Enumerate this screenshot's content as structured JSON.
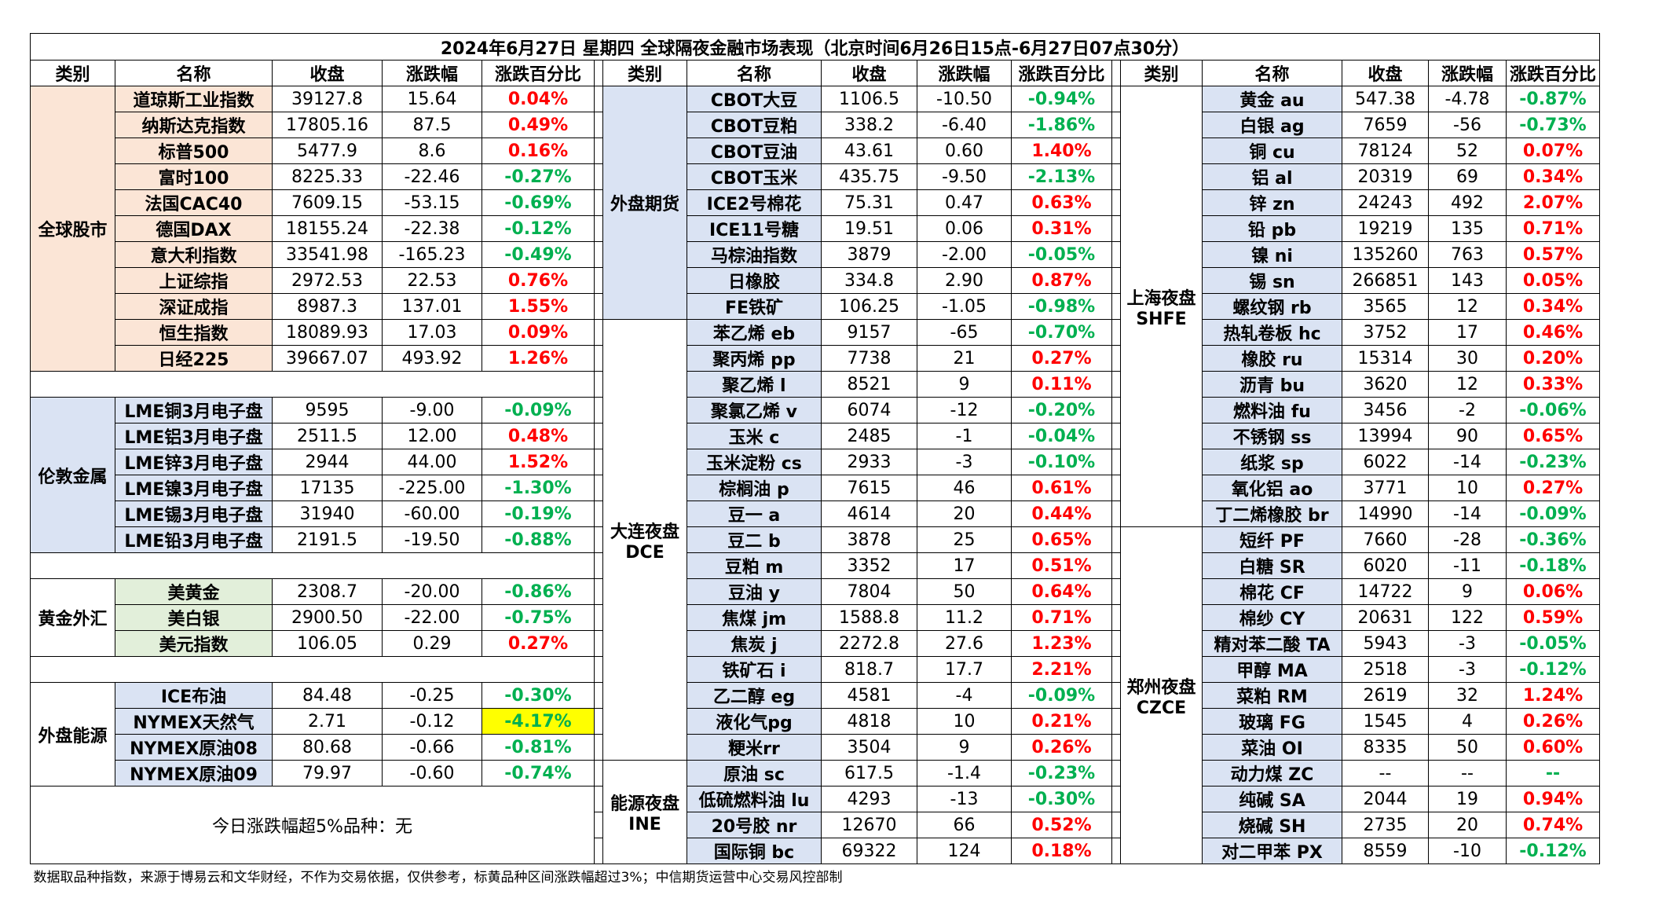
{
  "title": "2024年6月27日 星期四 全球隔夜金融市场表现（北京时间6月26日15点-6月27日07点30分）",
  "headers": [
    "类别",
    "名称",
    "收盘",
    "涨跌幅",
    "涨跌百分比"
  ],
  "colors": {
    "up": "#ff0000",
    "down": "#00b050",
    "highlight": "#ffff00",
    "stock_bg": "#fbe5d6",
    "metal_bg": "#dae3f3",
    "energy_bg": "#e2efda"
  },
  "left": {
    "stocks": {
      "label": "全球股市",
      "rows": [
        {
          "name": "道琼斯工业指数",
          "close": "39127.8",
          "chg": "15.64",
          "pct": "0.04%"
        },
        {
          "name": "纳斯达克指数",
          "close": "17805.16",
          "chg": "87.5",
          "pct": "0.49%"
        },
        {
          "name": "标普500",
          "close": "5477.9",
          "chg": "8.6",
          "pct": "0.16%"
        },
        {
          "name": "富时100",
          "close": "8225.33",
          "chg": "-22.46",
          "pct": "-0.27%"
        },
        {
          "name": "法国CAC40",
          "close": "7609.15",
          "chg": "-53.15",
          "pct": "-0.69%"
        },
        {
          "name": "德国DAX",
          "close": "18155.24",
          "chg": "-22.38",
          "pct": "-0.12%"
        },
        {
          "name": "意大利指数",
          "close": "33541.98",
          "chg": "-165.23",
          "pct": "-0.49%"
        },
        {
          "name": "上证综指",
          "close": "2972.53",
          "chg": "22.53",
          "pct": "0.76%"
        },
        {
          "name": "深证成指",
          "close": "8987.3",
          "chg": "137.01",
          "pct": "1.55%"
        },
        {
          "name": "恒生指数",
          "close": "18089.93",
          "chg": "17.03",
          "pct": "0.09%"
        },
        {
          "name": "日经225",
          "close": "39667.07",
          "chg": "493.92",
          "pct": "1.26%"
        }
      ]
    },
    "london": {
      "label": "伦敦金属",
      "rows": [
        {
          "name": "LME铜3月电子盘",
          "close": "9595",
          "chg": "-9.00",
          "pct": "-0.09%"
        },
        {
          "name": "LME铝3月电子盘",
          "close": "2511.5",
          "chg": "12.00",
          "pct": "0.48%"
        },
        {
          "name": "LME锌3月电子盘",
          "close": "2944",
          "chg": "44.00",
          "pct": "1.52%"
        },
        {
          "name": "LME镍3月电子盘",
          "close": "17135",
          "chg": "-225.00",
          "pct": "-1.30%"
        },
        {
          "name": "LME锡3月电子盘",
          "close": "31940",
          "chg": "-60.00",
          "pct": "-0.19%"
        },
        {
          "name": "LME铅3月电子盘",
          "close": "2191.5",
          "chg": "-19.50",
          "pct": "-0.88%"
        }
      ]
    },
    "gold": {
      "label": "黄金外汇",
      "rows": [
        {
          "name": "美黄金",
          "close": "2308.7",
          "chg": "-20.00",
          "pct": "-0.86%"
        },
        {
          "name": "美白银",
          "close": "2900.50",
          "chg": "-22.00",
          "pct": "-0.75%"
        },
        {
          "name": "美元指数",
          "close": "106.05",
          "chg": "0.29",
          "pct": "0.27%"
        }
      ]
    },
    "energy": {
      "label": "外盘能源",
      "rows": [
        {
          "name": "ICE布油",
          "close": "84.48",
          "chg": "-0.25",
          "pct": "-0.30%"
        },
        {
          "name": "NYMEX天然气",
          "close": "2.71",
          "chg": "-0.12",
          "pct": "-4.17%"
        },
        {
          "name": "NYMEX原油08",
          "close": "80.68",
          "chg": "-0.66",
          "pct": "-0.81%"
        },
        {
          "name": "NYMEX原油09",
          "close": "79.97",
          "chg": "-0.60",
          "pct": "-0.74%"
        }
      ]
    },
    "summary": "今日涨跌幅超5%品种：无"
  },
  "middle": {
    "foreign": {
      "label": "外盘期货",
      "rows": [
        {
          "name": "CBOT大豆",
          "close": "1106.5",
          "chg": "-10.50",
          "pct": "-0.94%"
        },
        {
          "name": "CBOT豆粕",
          "close": "338.2",
          "chg": "-6.40",
          "pct": "-1.86%"
        },
        {
          "name": "CBOT豆油",
          "close": "43.61",
          "chg": "0.60",
          "pct": "1.40%"
        },
        {
          "name": "CBOT玉米",
          "close": "435.75",
          "chg": "-9.50",
          "pct": "-2.13%"
        },
        {
          "name": "ICE2号棉花",
          "close": "75.31",
          "chg": "0.47",
          "pct": "0.63%"
        },
        {
          "name": "ICE11号糖",
          "close": "19.51",
          "chg": "0.06",
          "pct": "0.31%"
        },
        {
          "name": "马棕油指数",
          "close": "3879",
          "chg": "-2.00",
          "pct": "-0.05%"
        },
        {
          "name": "日橡胶",
          "close": "334.8",
          "chg": "2.90",
          "pct": "0.87%"
        },
        {
          "name": "FE铁矿",
          "close": "106.25",
          "chg": "-1.05",
          "pct": "-0.98%"
        }
      ]
    },
    "dce": {
      "label": "大连夜盘",
      "label2": "DCE",
      "rows": [
        {
          "name": "苯乙烯 eb",
          "close": "9157",
          "chg": "-65",
          "pct": "-0.70%"
        },
        {
          "name": "聚丙烯 pp",
          "close": "7738",
          "chg": "21",
          "pct": "0.27%"
        },
        {
          "name": "聚乙烯 l",
          "close": "8521",
          "chg": "9",
          "pct": "0.11%"
        },
        {
          "name": "聚氯乙烯 v",
          "close": "6074",
          "chg": "-12",
          "pct": "-0.20%"
        },
        {
          "name": "玉米 c",
          "close": "2485",
          "chg": "-1",
          "pct": "-0.04%"
        },
        {
          "name": "玉米淀粉 cs",
          "close": "2933",
          "chg": "-3",
          "pct": "-0.10%"
        },
        {
          "name": "棕榈油 p",
          "close": "7615",
          "chg": "46",
          "pct": "0.61%"
        },
        {
          "name": "豆一 a",
          "close": "4614",
          "chg": "20",
          "pct": "0.44%"
        },
        {
          "name": "豆二 b",
          "close": "3878",
          "chg": "25",
          "pct": "0.65%"
        },
        {
          "name": "豆粕 m",
          "close": "3352",
          "chg": "17",
          "pct": "0.51%"
        },
        {
          "name": "豆油 y",
          "close": "7804",
          "chg": "50",
          "pct": "0.64%"
        },
        {
          "name": "焦煤 jm",
          "close": "1588.8",
          "chg": "11.2",
          "pct": "0.71%"
        },
        {
          "name": "焦炭 j",
          "close": "2272.8",
          "chg": "27.6",
          "pct": "1.23%"
        },
        {
          "name": "铁矿石 i",
          "close": "818.7",
          "chg": "17.7",
          "pct": "2.21%"
        },
        {
          "name": "乙二醇 eg",
          "close": "4581",
          "chg": "-4",
          "pct": "-0.09%"
        },
        {
          "name": "液化气pg",
          "close": "4818",
          "chg": "10",
          "pct": "0.21%"
        },
        {
          "name": "粳米rr",
          "close": "3504",
          "chg": "9",
          "pct": "0.26%"
        }
      ]
    },
    "ine": {
      "label": "能源夜盘",
      "label2": "INE",
      "rows": [
        {
          "name": "原油 sc",
          "close": "617.5",
          "chg": "-1.4",
          "pct": "-0.23%"
        },
        {
          "name": "低硫燃料油 lu",
          "close": "4293",
          "chg": "-13",
          "pct": "-0.30%"
        },
        {
          "name": "20号胶 nr",
          "close": "12670",
          "chg": "66",
          "pct": "0.52%"
        },
        {
          "name": "国际铜 bc",
          "close": "69322",
          "chg": "124",
          "pct": "0.18%"
        }
      ]
    }
  },
  "right": {
    "shfe": {
      "label": "上海夜盘",
      "label2": "SHFE",
      "rows": [
        {
          "name": "黄金 au",
          "close": "547.38",
          "chg": "-4.78",
          "pct": "-0.87%"
        },
        {
          "name": "白银 ag",
          "close": "7659",
          "chg": "-56",
          "pct": "-0.73%"
        },
        {
          "name": "铜 cu",
          "close": "78124",
          "chg": "52",
          "pct": "0.07%"
        },
        {
          "name": "铝 al",
          "close": "20319",
          "chg": "69",
          "pct": "0.34%"
        },
        {
          "name": "锌 zn",
          "close": "24243",
          "chg": "492",
          "pct": "2.07%"
        },
        {
          "name": "铅 pb",
          "close": "19219",
          "chg": "135",
          "pct": "0.71%"
        },
        {
          "name": "镍 ni",
          "close": "135260",
          "chg": "763",
          "pct": "0.57%"
        },
        {
          "name": "锡 sn",
          "close": "266851",
          "chg": "143",
          "pct": "0.05%"
        },
        {
          "name": "螺纹钢 rb",
          "close": "3565",
          "chg": "12",
          "pct": "0.34%"
        },
        {
          "name": "热轧卷板 hc",
          "close": "3752",
          "chg": "17",
          "pct": "0.46%"
        },
        {
          "name": "橡胶 ru",
          "close": "15314",
          "chg": "30",
          "pct": "0.20%"
        },
        {
          "name": "沥青 bu",
          "close": "3620",
          "chg": "12",
          "pct": "0.33%"
        },
        {
          "name": "燃料油 fu",
          "close": "3456",
          "chg": "-2",
          "pct": "-0.06%"
        },
        {
          "name": "不锈钢 ss",
          "close": "13994",
          "chg": "90",
          "pct": "0.65%"
        },
        {
          "name": "纸浆 sp",
          "close": "6022",
          "chg": "-14",
          "pct": "-0.23%"
        },
        {
          "name": "氧化铝 ao",
          "close": "3771",
          "chg": "10",
          "pct": "0.27%"
        },
        {
          "name": "丁二烯橡胶 br",
          "close": "14990",
          "chg": "-14",
          "pct": "-0.09%"
        }
      ]
    },
    "czce": {
      "label": "郑州夜盘",
      "label2": "CZCE",
      "rows": [
        {
          "name": "短纤 PF",
          "close": "7660",
          "chg": "-28",
          "pct": "-0.36%"
        },
        {
          "name": "白糖 SR",
          "close": "6020",
          "chg": "-11",
          "pct": "-0.18%"
        },
        {
          "name": "棉花 CF",
          "close": "14722",
          "chg": "9",
          "pct": "0.06%"
        },
        {
          "name": "棉纱 CY",
          "close": "20631",
          "chg": "122",
          "pct": "0.59%"
        },
        {
          "name": "精对苯二酸 TA",
          "close": "5943",
          "chg": "-3",
          "pct": "-0.05%"
        },
        {
          "name": "甲醇 MA",
          "close": "2518",
          "chg": "-3",
          "pct": "-0.12%"
        },
        {
          "name": "菜粕 RM",
          "close": "2619",
          "chg": "32",
          "pct": "1.24%"
        },
        {
          "name": "玻璃 FG",
          "close": "1545",
          "chg": "4",
          "pct": "0.26%"
        },
        {
          "name": "菜油 OI",
          "close": "8335",
          "chg": "50",
          "pct": "0.60%"
        },
        {
          "name": "动力煤 ZC",
          "close": "--",
          "chg": "--",
          "pct": "--"
        },
        {
          "name": "纯碱 SA",
          "close": "2044",
          "chg": "19",
          "pct": "0.94%"
        },
        {
          "name": "烧碱 SH",
          "close": "2735",
          "chg": "20",
          "pct": "0.74%"
        },
        {
          "name": "对二甲苯 PX",
          "close": "8559",
          "chg": "-10",
          "pct": "-0.12%"
        }
      ]
    }
  },
  "footnote": "数据取品种指数，来源于博易云和文华财经，不作为交易依据，仅供参考，标黄品种区间涨跌幅超过3%；中信期货运营中心交易风控部制"
}
